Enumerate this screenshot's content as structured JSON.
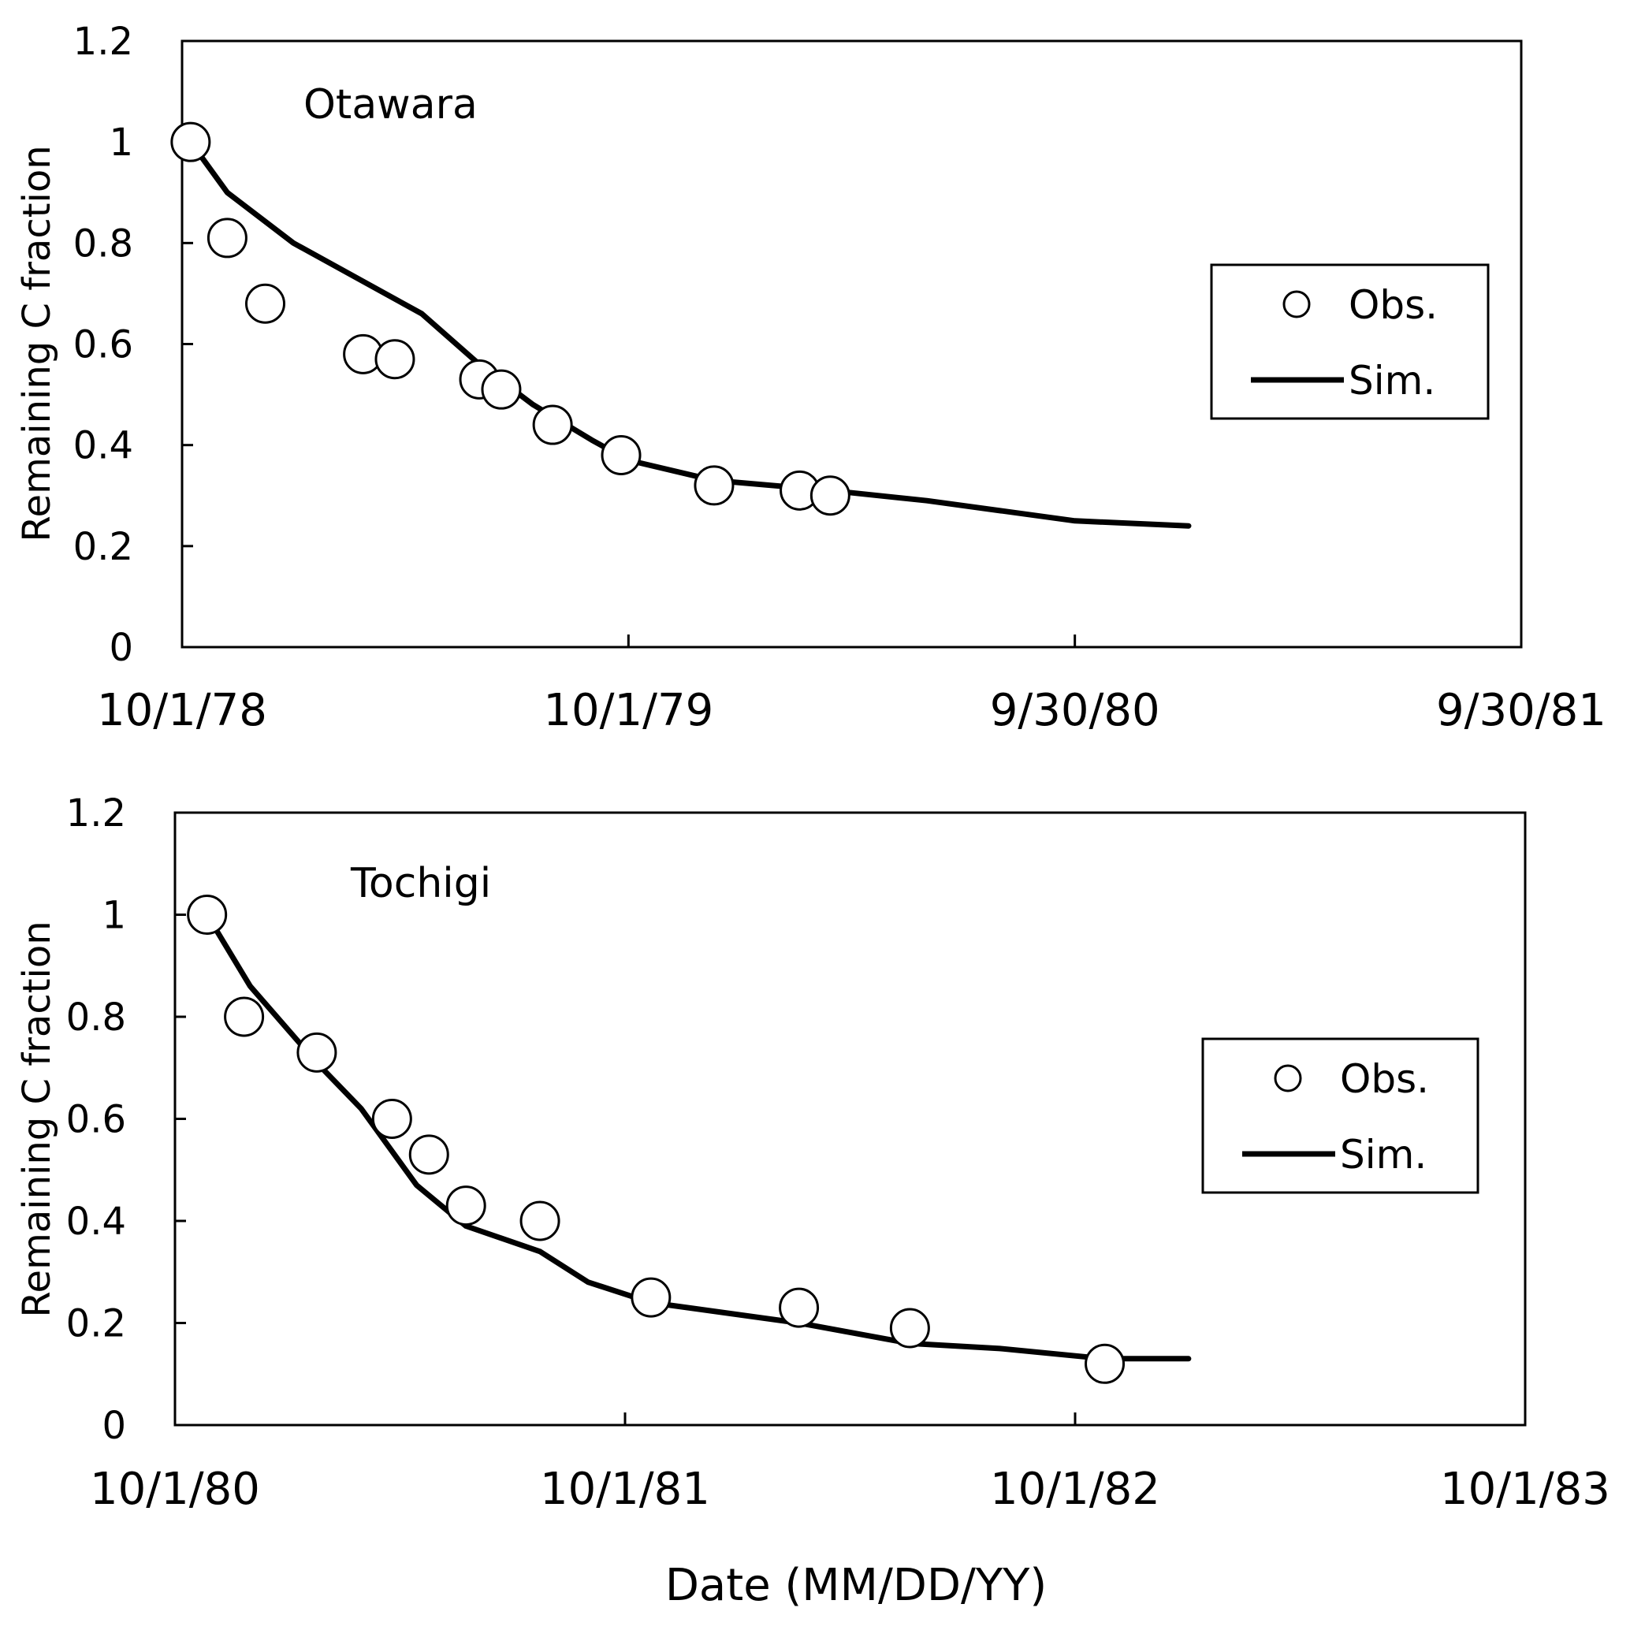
{
  "xlabel": "Date (MM/DD/YY)",
  "chart_data": [
    {
      "type": "line",
      "site_label": "Otawara",
      "title": "",
      "xlabel": "",
      "ylabel": "Remaining C fraction",
      "xlim": [
        "1978-10-01",
        "1981-09-30"
      ],
      "ylim": [
        0,
        1.2
      ],
      "y_ticks": [
        "0",
        "0.2",
        "0.4",
        "0.6",
        "0.8",
        "1",
        "1.2"
      ],
      "x_ticks": [
        {
          "date": "1978-10-01",
          "label": "10/1/78"
        },
        {
          "date": "1979-10-01",
          "label": "10/1/79"
        },
        {
          "date": "1980-09-30",
          "label": "9/30/80"
        },
        {
          "date": "1981-09-30",
          "label": "9/30/81"
        }
      ],
      "legend": {
        "placement": "right",
        "obs_label": "Obs.",
        "sim_label": "Sim."
      },
      "series": [
        {
          "name": "Obs.",
          "kind": "scatter",
          "points": [
            {
              "x": "1978-10-08",
              "y": 1.0
            },
            {
              "x": "1978-11-07",
              "y": 0.81
            },
            {
              "x": "1978-12-08",
              "y": 0.68
            },
            {
              "x": "1979-02-26",
              "y": 0.58
            },
            {
              "x": "1979-03-24",
              "y": 0.57
            },
            {
              "x": "1979-06-01",
              "y": 0.53
            },
            {
              "x": "1979-06-19",
              "y": 0.51
            },
            {
              "x": "1979-07-31",
              "y": 0.44
            },
            {
              "x": "1979-09-25",
              "y": 0.38
            },
            {
              "x": "1979-12-10",
              "y": 0.32
            },
            {
              "x": "1980-02-18",
              "y": 0.31
            },
            {
              "x": "1980-03-14",
              "y": 0.3
            }
          ]
        },
        {
          "name": "Sim.",
          "kind": "line",
          "points": [
            {
              "x": "1978-10-08",
              "y": 1.0
            },
            {
              "x": "1978-11-07",
              "y": 0.9
            },
            {
              "x": "1978-12-31",
              "y": 0.8
            },
            {
              "x": "1979-03-01",
              "y": 0.72
            },
            {
              "x": "1979-04-15",
              "y": 0.66
            },
            {
              "x": "1979-06-01",
              "y": 0.56
            },
            {
              "x": "1979-07-15",
              "y": 0.48
            },
            {
              "x": "1979-09-01",
              "y": 0.41
            },
            {
              "x": "1979-10-01",
              "y": 0.37
            },
            {
              "x": "1979-12-10",
              "y": 0.33
            },
            {
              "x": "1980-03-14",
              "y": 0.31
            },
            {
              "x": "1980-06-01",
              "y": 0.29
            },
            {
              "x": "1980-09-30",
              "y": 0.25
            },
            {
              "x": "1981-01-01",
              "y": 0.24
            }
          ]
        }
      ]
    },
    {
      "type": "line",
      "site_label": "Tochigi",
      "title": "",
      "xlabel": "Date (MM/DD/YY)",
      "ylabel": "Remaining C fraction",
      "xlim": [
        "1980-10-01",
        "1983-10-01"
      ],
      "ylim": [
        0,
        1.2
      ],
      "y_ticks": [
        "0",
        "0.2",
        "0.4",
        "0.6",
        "0.8",
        "1",
        "1.2"
      ],
      "x_ticks": [
        {
          "date": "1980-10-01",
          "label": "10/1/80"
        },
        {
          "date": "1981-10-01",
          "label": "10/1/81"
        },
        {
          "date": "1982-10-01",
          "label": "10/1/82"
        },
        {
          "date": "1983-10-01",
          "label": "10/1/83"
        }
      ],
      "legend": {
        "placement": "right",
        "obs_label": "Obs.",
        "sim_label": "Sim."
      },
      "series": [
        {
          "name": "Obs.",
          "kind": "scatter",
          "points": [
            {
              "x": "1980-10-27",
              "y": 1.0
            },
            {
              "x": "1980-11-26",
              "y": 0.8
            },
            {
              "x": "1981-01-24",
              "y": 0.73
            },
            {
              "x": "1981-03-26",
              "y": 0.6
            },
            {
              "x": "1981-04-25",
              "y": 0.53
            },
            {
              "x": "1981-05-25",
              "y": 0.43
            },
            {
              "x": "1981-07-24",
              "y": 0.4
            },
            {
              "x": "1981-10-22",
              "y": 0.25
            },
            {
              "x": "1982-02-19",
              "y": 0.23
            },
            {
              "x": "1982-05-20",
              "y": 0.19
            },
            {
              "x": "1982-10-25",
              "y": 0.12
            }
          ]
        },
        {
          "name": "Sim.",
          "kind": "line",
          "points": [
            {
              "x": "1980-10-27",
              "y": 1.0
            },
            {
              "x": "1980-12-01",
              "y": 0.86
            },
            {
              "x": "1981-01-24",
              "y": 0.71
            },
            {
              "x": "1981-03-01",
              "y": 0.62
            },
            {
              "x": "1981-04-15",
              "y": 0.47
            },
            {
              "x": "1981-05-25",
              "y": 0.39
            },
            {
              "x": "1981-07-24",
              "y": 0.34
            },
            {
              "x": "1981-09-01",
              "y": 0.28
            },
            {
              "x": "1981-10-22",
              "y": 0.24
            },
            {
              "x": "1982-02-19",
              "y": 0.2
            },
            {
              "x": "1982-05-20",
              "y": 0.16
            },
            {
              "x": "1982-08-01",
              "y": 0.15
            },
            {
              "x": "1982-10-25",
              "y": 0.13
            },
            {
              "x": "1983-01-01",
              "y": 0.13
            }
          ]
        }
      ]
    }
  ]
}
